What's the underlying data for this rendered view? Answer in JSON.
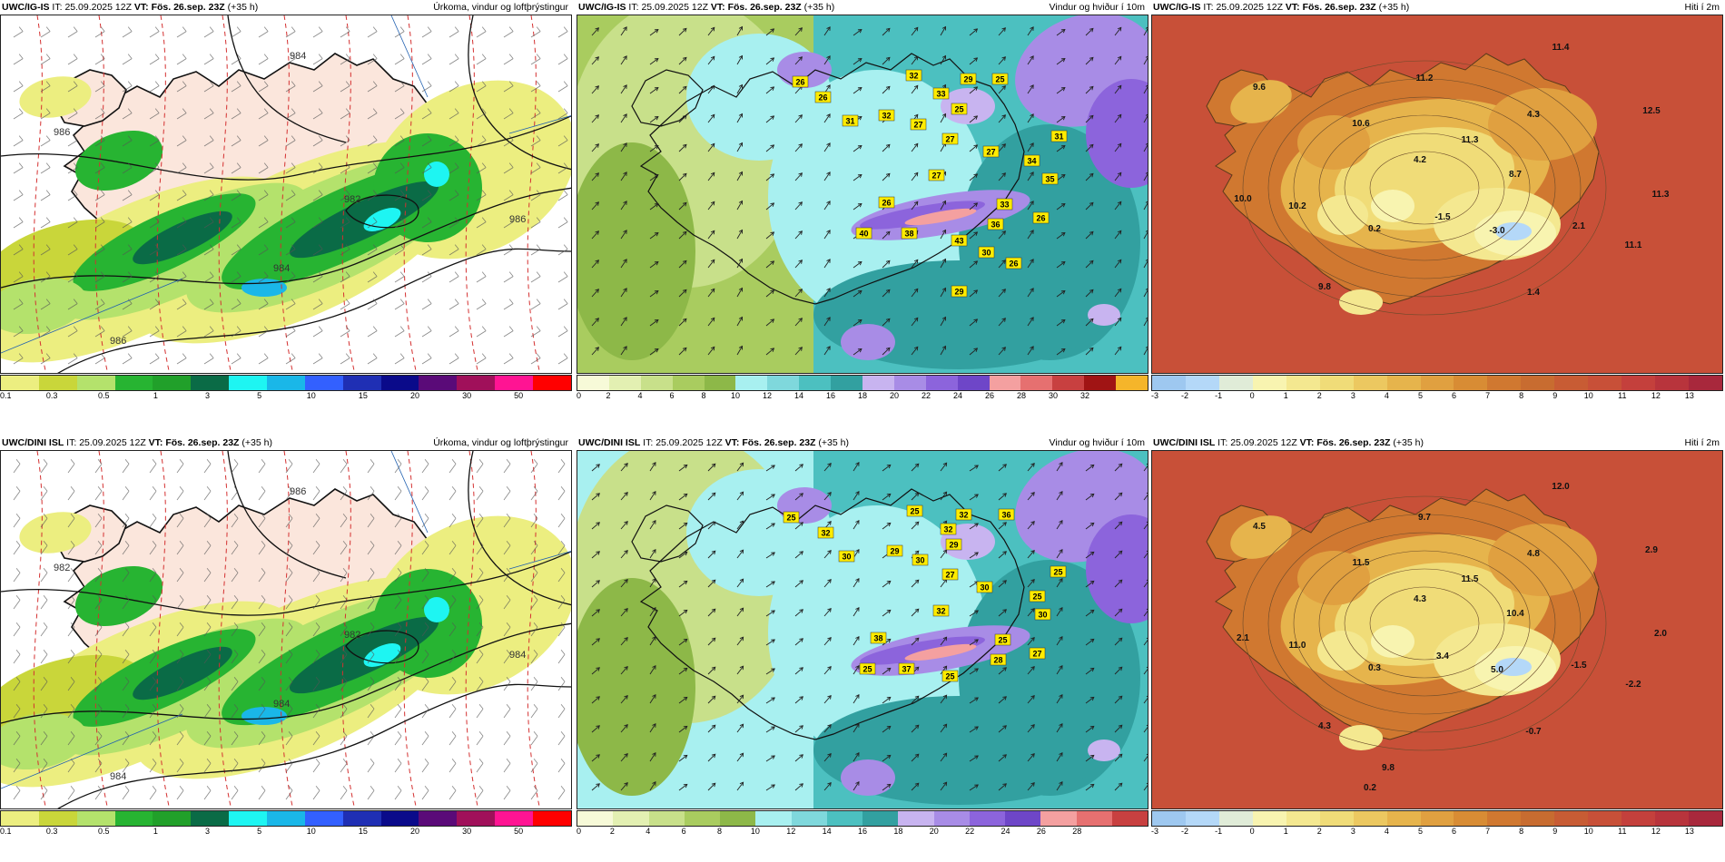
{
  "panels": [
    {
      "model": "UWC/IG-IS",
      "it_label": "IT:",
      "it_value": "25.09.2025 12Z",
      "vt_label": "VT:",
      "vt_value": "Fös. 26.sep. 23Z",
      "lead": "(+35 h)",
      "title": "Úrkoma, vindur og loftþrýstingur",
      "type": "precip",
      "colors": [
        "#ecee80",
        "#c9d63a",
        "#b4e26c",
        "#27b432",
        "#21a02a",
        "#0a6b46",
        "#1ef5f2",
        "#1ab7e8",
        "#3360ff",
        "#1f2fb4",
        "#0a0a8a",
        "#5a0a78",
        "#a0105a",
        "#ff1493",
        "#ff0000"
      ],
      "ticks": [
        "0.1",
        "0.3",
        "0.5",
        "1",
        "3",
        "5",
        "10",
        "15",
        "20",
        "30",
        "50"
      ],
      "isobars": [
        "986",
        "984",
        "986",
        "982",
        "984",
        "986"
      ],
      "map_text": []
    },
    {
      "model": "UWC/IG-IS",
      "it_label": "IT:",
      "it_value": "25.09.2025 12Z",
      "vt_label": "VT:",
      "vt_value": "Fös. 26.sep. 23Z",
      "lead": "(+35 h)",
      "title": "Vindur og hviður í 10m",
      "type": "wind",
      "colors": [
        "#f7fad8",
        "#e3f0b2",
        "#c8e08a",
        "#a9cc5f",
        "#8db848",
        "#a8f0f0",
        "#7fd8dc",
        "#4cc0c0",
        "#32a0a0",
        "#c8b4f0",
        "#a88ce6",
        "#8c64dc",
        "#6e46c8",
        "#f4a0a0",
        "#e67070",
        "#c84040",
        "#a01414",
        "#f5b52a"
      ],
      "ticks": [
        "0",
        "2",
        "4",
        "6",
        "8",
        "10",
        "12",
        "14",
        "16",
        "18",
        "20",
        "22",
        "24",
        "26",
        "28",
        "30",
        "32"
      ],
      "gusts": [
        "26",
        "26",
        "31",
        "32",
        "27",
        "29",
        "33",
        "32",
        "25",
        "25",
        "27",
        "27",
        "34",
        "31",
        "35",
        "27",
        "33",
        "26",
        "40",
        "38",
        "43",
        "36",
        "26",
        "30",
        "26",
        "29"
      ],
      "map_text": []
    },
    {
      "model": "UWC/IG-IS",
      "it_label": "IT:",
      "it_value": "25.09.2025 12Z",
      "vt_label": "VT:",
      "vt_value": "Fös. 26.sep. 23Z",
      "lead": "(+35 h)",
      "title": "Hiti í 2m",
      "type": "temp",
      "colors": [
        "#9ec8f0",
        "#b4d8f8",
        "#e0ecd8",
        "#f8f4b0",
        "#f4e890",
        "#f0dc78",
        "#ecc860",
        "#e6b44c",
        "#e0a040",
        "#d88c34",
        "#d07830",
        "#c86c30",
        "#c85c34",
        "#c85038",
        "#c4403c",
        "#b8343c",
        "#a8283c"
      ],
      "ticks": [
        "-3",
        "-2",
        "-1",
        "0",
        "1",
        "2",
        "3",
        "4",
        "5",
        "6",
        "7",
        "8",
        "9",
        "10",
        "11",
        "12",
        "13"
      ],
      "temps": [
        "11.4",
        "9.6",
        "11.2",
        "10.6",
        "4.3",
        "12.5",
        "11.3",
        "4.2",
        "8.7",
        "10.0",
        "10.2",
        "-1.5",
        "0.2",
        "2.1",
        "11.3",
        "-3.0",
        "11.1",
        "9.8",
        "1.4"
      ],
      "map_text": []
    },
    {
      "model": "UWC/DINI ISL",
      "it_label": "IT:",
      "it_value": "25.09.2025 12Z",
      "vt_label": "VT:",
      "vt_value": "Fös. 26.sep. 23Z",
      "lead": "(+35 h)",
      "title": "Úrkoma, vindur og loftþrýstingur",
      "type": "precip",
      "colors": [
        "#ecee80",
        "#c9d63a",
        "#b4e26c",
        "#27b432",
        "#21a02a",
        "#0a6b46",
        "#1ef5f2",
        "#1ab7e8",
        "#3360ff",
        "#1f2fb4",
        "#0a0a8a",
        "#5a0a78",
        "#a0105a",
        "#ff1493",
        "#ff0000"
      ],
      "ticks": [
        "0.1",
        "0.3",
        "0.5",
        "1",
        "3",
        "5",
        "10",
        "15",
        "20",
        "30",
        "50"
      ],
      "isobars": [
        "982",
        "984",
        "984",
        "982",
        "986",
        "984"
      ],
      "map_text": []
    },
    {
      "model": "UWC/DINI ISL",
      "it_label": "IT:",
      "it_value": "25.09.2025 12Z",
      "vt_label": "VT:",
      "vt_value": "Fös. 26.sep. 23Z",
      "lead": "(+35 h)",
      "title": "Vindur og hviður í 10m",
      "type": "wind",
      "colors": [
        "#f7fad8",
        "#e3f0b2",
        "#c8e08a",
        "#a9cc5f",
        "#8db848",
        "#a8f0f0",
        "#7fd8dc",
        "#4cc0c0",
        "#32a0a0",
        "#c8b4f0",
        "#a88ce6",
        "#8c64dc",
        "#6e46c8",
        "#f4a0a0",
        "#e67070",
        "#c84040"
      ],
      "ticks": [
        "0",
        "2",
        "4",
        "6",
        "8",
        "10",
        "12",
        "14",
        "16",
        "18",
        "20",
        "22",
        "24",
        "26",
        "28"
      ],
      "gusts": [
        "25",
        "32",
        "30",
        "29",
        "30",
        "32",
        "32",
        "25",
        "29",
        "36",
        "27",
        "30",
        "25",
        "25",
        "30",
        "32",
        "25",
        "38",
        "25",
        "37",
        "25",
        "28",
        "27"
      ],
      "map_text": []
    },
    {
      "model": "UWC/DINI ISL",
      "it_label": "IT:",
      "it_value": "25.09.2025 12Z",
      "vt_label": "VT:",
      "vt_value": "Fös. 26.sep. 23Z",
      "lead": "(+35 h)",
      "title": "Hiti í 2m",
      "type": "temp",
      "colors": [
        "#9ec8f0",
        "#b4d8f8",
        "#e0ecd8",
        "#f8f4b0",
        "#f4e890",
        "#f0dc78",
        "#ecc860",
        "#e6b44c",
        "#e0a040",
        "#d88c34",
        "#d07830",
        "#c86c30",
        "#c85c34",
        "#c85038",
        "#c4403c",
        "#b8343c",
        "#a8283c"
      ],
      "ticks": [
        "-3",
        "-2",
        "-1",
        "0",
        "1",
        "2",
        "3",
        "4",
        "5",
        "6",
        "7",
        "8",
        "9",
        "10",
        "11",
        "12",
        "13"
      ],
      "temps": [
        "12.0",
        "4.5",
        "9.7",
        "11.5",
        "4.8",
        "2.9",
        "11.5",
        "4.3",
        "10.4",
        "2.1",
        "11.0",
        "3.4",
        "0.3",
        "-1.5",
        "2.0",
        "5.0",
        "-2.2",
        "4.3",
        "-0.7",
        "9.8",
        "0.2"
      ],
      "map_text": []
    }
  ]
}
